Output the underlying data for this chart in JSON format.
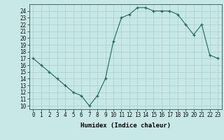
{
  "x": [
    0,
    1,
    2,
    3,
    4,
    5,
    6,
    7,
    8,
    9,
    10,
    11,
    12,
    13,
    14,
    15,
    16,
    17,
    18,
    19,
    20,
    21,
    22,
    23
  ],
  "y": [
    17,
    16,
    15,
    14,
    13,
    12,
    11.5,
    10,
    11.5,
    14,
    19.5,
    23,
    23.5,
    24.5,
    24.5,
    24,
    24,
    24,
    23.5,
    22,
    20.5,
    22,
    17.5,
    17
  ],
  "line_color": "#1a6b5a",
  "marker": "+",
  "bg_color": "#c8e8e8",
  "grid_color": "#aacccc",
  "xlabel": "Humidex (Indice chaleur)",
  "ylabel_ticks": [
    10,
    11,
    12,
    13,
    14,
    15,
    16,
    17,
    18,
    19,
    20,
    21,
    22,
    23,
    24
  ],
  "ylim": [
    9.5,
    25.0
  ],
  "xlim": [
    -0.5,
    23.5
  ],
  "xticks": [
    0,
    1,
    2,
    3,
    4,
    5,
    6,
    7,
    8,
    9,
    10,
    11,
    12,
    13,
    14,
    15,
    16,
    17,
    18,
    19,
    20,
    21,
    22,
    23
  ],
  "axis_fontsize": 5.5,
  "label_fontsize": 6.5
}
